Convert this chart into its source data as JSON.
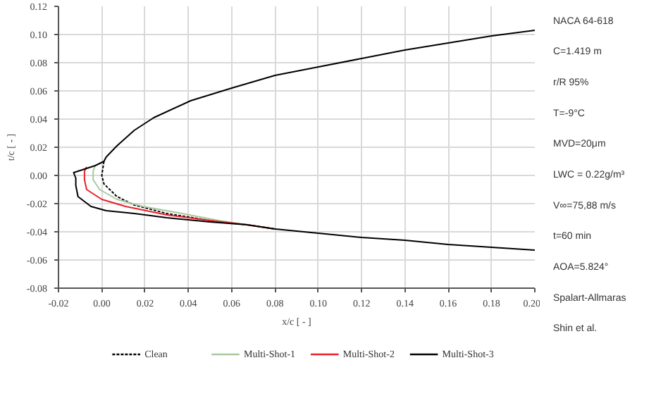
{
  "chart_data": {
    "type": "line",
    "xlabel": "x/c [ - ]",
    "ylabel": "t/c [ - ]",
    "xlim": [
      -0.02,
      0.2
    ],
    "xticks": [
      {
        "value": -0.02,
        "label": "-0.02"
      },
      {
        "value": 0,
        "label": "0.00"
      },
      {
        "value": 0.02,
        "label": "0.02"
      },
      {
        "value": 0.04,
        "label": "0.04"
      },
      {
        "value": 0.06,
        "label": "0.06"
      },
      {
        "value": 0.08,
        "label": "0.08"
      },
      {
        "value": 0.1,
        "label": "0.10"
      },
      {
        "value": 0.12,
        "label": "0.12"
      },
      {
        "value": 0.14,
        "label": "0.14"
      },
      {
        "value": 0.16,
        "label": "0.16"
      },
      {
        "value": 0.18,
        "label": "0.18"
      },
      {
        "value": 0.2,
        "label": "0.20"
      }
    ],
    "ylim": [
      -0.08,
      0.12
    ],
    "yticks": [
      {
        "value": -0.08,
        "label": "-0.08"
      },
      {
        "value": -0.06,
        "label": "-0.06"
      },
      {
        "value": -0.04,
        "label": "-0.04"
      },
      {
        "value": -0.02,
        "label": "-0.02"
      },
      {
        "value": 0,
        "label": "0.00"
      },
      {
        "value": 0.02,
        "label": "0.02"
      },
      {
        "value": 0.04,
        "label": "0.04"
      },
      {
        "value": 0.06,
        "label": "0.06"
      },
      {
        "value": 0.08,
        "label": "0.08"
      },
      {
        "value": 0.1,
        "label": "0.10"
      },
      {
        "value": 0.12,
        "label": "0.12"
      }
    ],
    "grid": true,
    "legend": "bottom",
    "series": [
      {
        "name": "Clean",
        "color": "#000000",
        "line_style": "dashed",
        "x": [
          0.001,
          0,
          0.001,
          0.007,
          0.015,
          0.03,
          0.05,
          0.067,
          0.08
        ],
        "values": [
          0.01,
          0,
          -0.006,
          -0.015,
          -0.021,
          -0.027,
          -0.032,
          -0.035,
          -0.038
        ]
      },
      {
        "name": "Multi-Shot-1",
        "color": "#a8c8a0",
        "line_style": "solid",
        "x": [
          -0.003,
          -0.004,
          -0.004,
          -0.001,
          0.007,
          0.019,
          0.037,
          0.054,
          0.067,
          0.08
        ],
        "values": [
          0.007,
          0.003,
          -0.003,
          -0.01,
          -0.017,
          -0.022,
          -0.027,
          -0.032,
          -0.035,
          -0.038
        ]
      },
      {
        "name": "Multi-Shot-2",
        "color": "#e8202a",
        "line_style": "solid",
        "x": [
          -0.007,
          -0.008,
          -0.008,
          -0.007,
          0,
          0.011,
          0.03,
          0.05,
          0.067,
          0.08
        ],
        "values": [
          0.006,
          0.003,
          -0.003,
          -0.01,
          -0.017,
          -0.022,
          -0.028,
          -0.032,
          -0.035,
          -0.038
        ]
      },
      {
        "name": "Multi-Shot-3",
        "color": "#000000",
        "line_style": "solid",
        "x": [
          0.2,
          0.18,
          0.16,
          0.14,
          0.12,
          0.1,
          0.08,
          0.06,
          0.041,
          0.024,
          0.015,
          0.007,
          0.002,
          0.001,
          -0.003,
          -0.009,
          -0.013,
          -0.012,
          -0.012,
          -0.011,
          -0.005,
          0.002,
          0.015,
          0.03,
          0.05,
          0.067,
          0.08,
          0.1,
          0.12,
          0.14,
          0.16,
          0.18,
          0.2
        ],
        "values": [
          0.103,
          0.099,
          0.094,
          0.089,
          0.083,
          0.077,
          0.071,
          0.062,
          0.053,
          0.041,
          0.032,
          0.021,
          0.013,
          0.01,
          0.007,
          0.004,
          0.002,
          -0.002,
          -0.007,
          -0.015,
          -0.022,
          -0.025,
          -0.027,
          -0.03,
          -0.033,
          -0.035,
          -0.038,
          -0.041,
          -0.044,
          -0.046,
          -0.049,
          -0.051,
          -0.053
        ]
      }
    ],
    "annotations": [
      "NACA 64-618",
      "C=1.419 m",
      "r/R 95%",
      "T=-9°C",
      "MVD=20μm",
      "LWC = 0.22g/m³",
      "V∞=75,88 m/s",
      "t=60 min",
      "AOA=5.824°",
      "Spalart-Allmaras",
      "Shin et al."
    ]
  }
}
